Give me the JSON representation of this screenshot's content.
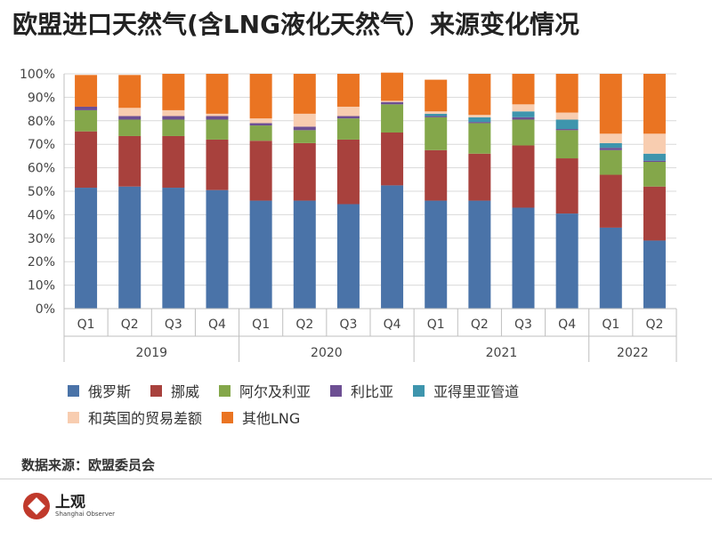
{
  "title": "欧盟进口天然气(含LNG液化天然气）来源变化情况",
  "source": "数据来源：欧盟委员会",
  "brand": {
    "name_cn": "上观",
    "name_en": "Shanghai Observer"
  },
  "colors": {
    "俄罗斯": "#4a73a8",
    "挪威": "#a8413d",
    "阿尔及利亚": "#84a74a",
    "利比亚": "#6d4f93",
    "亚得里亚管道": "#3e95ad",
    "和英国的贸易差额": "#f8cdb0",
    "其他LNG": "#ea7422"
  },
  "chart_data": {
    "type": "bar",
    "stacked": true,
    "title": "欧盟进口天然气(含LNG液化天然气）来源变化情况",
    "categories": [
      "Q1",
      "Q2",
      "Q3",
      "Q4",
      "Q1",
      "Q2",
      "Q3",
      "Q4",
      "Q1",
      "Q2",
      "Q3",
      "Q4",
      "Q1",
      "Q2"
    ],
    "years": [
      {
        "label": "2019",
        "count": 4
      },
      {
        "label": "2020",
        "count": 4
      },
      {
        "label": "2021",
        "count": 4
      },
      {
        "label": "2022",
        "count": 2
      }
    ],
    "ylim": [
      0,
      100
    ],
    "yticks": [
      0,
      10,
      20,
      30,
      40,
      50,
      60,
      70,
      80,
      90,
      100
    ],
    "ytick_labels": [
      "0%",
      "10%",
      "20%",
      "30%",
      "40%",
      "50%",
      "60%",
      "70%",
      "80%",
      "90%",
      "100%"
    ],
    "grid": true,
    "legend_position": "bottom",
    "series": [
      {
        "name": "俄罗斯",
        "values": [
          51.5,
          52,
          51.5,
          50.5,
          46,
          46,
          44.5,
          52.5,
          46,
          46,
          43,
          40.5,
          34.5,
          29
        ]
      },
      {
        "name": "挪威",
        "values": [
          24,
          21.5,
          22,
          21.5,
          25.5,
          24.5,
          27.5,
          22.5,
          21.5,
          20,
          26.5,
          23.5,
          22.5,
          23
        ]
      },
      {
        "name": "阿尔及利亚",
        "values": [
          9,
          7,
          7,
          8.5,
          6.5,
          5.5,
          9,
          12,
          14,
          13,
          11,
          12,
          10.5,
          10.5
        ]
      },
      {
        "name": "利比亚",
        "values": [
          1.5,
          1.5,
          1.5,
          1.5,
          1,
          1.5,
          1,
          1,
          0.5,
          0.5,
          1,
          0.5,
          1,
          0.5
        ]
      },
      {
        "name": "亚得里亚管道",
        "values": [
          0,
          0,
          0,
          0,
          0,
          0,
          0,
          0,
          1,
          2,
          2.5,
          4,
          2,
          3
        ]
      },
      {
        "name": "和英国的贸易差额",
        "values": [
          0,
          3.5,
          2.5,
          1,
          2,
          5.5,
          4,
          0.5,
          1,
          1,
          3,
          3,
          4,
          8.5
        ]
      },
      {
        "name": "其他LNG",
        "values": [
          13.5,
          14,
          15.5,
          17,
          19,
          17,
          14,
          12,
          13.5,
          17.5,
          13,
          16.5,
          25.5,
          25.5
        ]
      }
    ]
  }
}
